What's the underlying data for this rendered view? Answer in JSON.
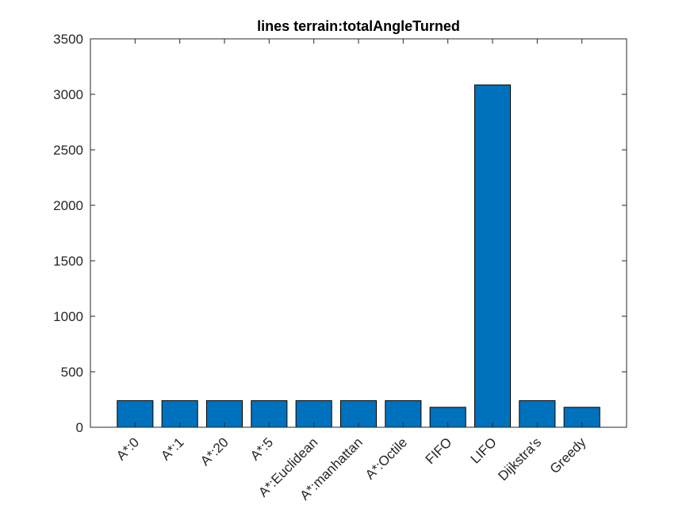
{
  "chart_data": {
    "type": "bar",
    "title": "lines terrain:totalAngleTurned",
    "xlabel": "",
    "ylabel": "",
    "categories": [
      "A*:0",
      "A*:1",
      "A*:20",
      "A*:5",
      "A*:Euclidean",
      "A*:manhattan",
      "A*:Octile",
      "FIFO",
      "LIFO",
      "Dijkstra's",
      "Greedy"
    ],
    "values": [
      240,
      240,
      240,
      240,
      240,
      240,
      240,
      180,
      3085,
      240,
      180
    ],
    "ylim": [
      0,
      3500
    ],
    "yticks": [
      0,
      500,
      1000,
      1500,
      2000,
      2500,
      3000,
      3500
    ],
    "grid": false,
    "bar_color": "#0072BD",
    "edge_color": "#000000"
  }
}
